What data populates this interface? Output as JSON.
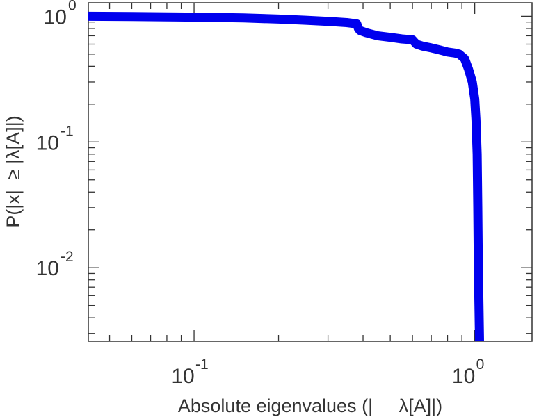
{
  "chart_data": {
    "type": "line",
    "title": "",
    "xlabel": "Absolute eigenvalues (|     λ[A]|)",
    "ylabel": "P(|x|  ≥ |λ[A]|)",
    "x_scale": "log",
    "y_scale": "log",
    "xlim": [
      0.042,
      1.6
    ],
    "ylim": [
      0.0026,
      1.28
    ],
    "grid": false,
    "legend": "none",
    "line_color": "#0000ee",
    "x_ticks": [
      {
        "value": 0.1,
        "base": "10",
        "exp": "-1"
      },
      {
        "value": 1.0,
        "base": "10",
        "exp": "0"
      }
    ],
    "y_ticks": [
      {
        "value": 1.0,
        "base": "10",
        "exp": "0"
      },
      {
        "value": 0.1,
        "base": "10",
        "exp": "-1"
      },
      {
        "value": 0.01,
        "base": "10",
        "exp": "-2"
      }
    ],
    "series": [
      {
        "x": [
          0.042,
          0.06,
          0.08,
          0.1,
          0.15,
          0.2,
          0.25,
          0.3,
          0.35,
          0.38,
          0.385,
          0.39,
          0.41,
          0.45,
          0.5,
          0.55,
          0.6,
          0.62,
          0.65,
          0.7,
          0.75,
          0.8,
          0.85,
          0.88,
          0.92,
          0.95,
          0.98,
          1.0,
          1.01,
          1.02,
          1.025,
          1.03,
          1.035,
          1.04
        ],
        "y": [
          1.0,
          0.995,
          0.99,
          0.985,
          0.97,
          0.95,
          0.93,
          0.91,
          0.89,
          0.87,
          0.8,
          0.77,
          0.74,
          0.7,
          0.68,
          0.66,
          0.65,
          0.6,
          0.58,
          0.56,
          0.54,
          0.52,
          0.51,
          0.5,
          0.46,
          0.38,
          0.3,
          0.22,
          0.15,
          0.08,
          0.03,
          0.01,
          0.005,
          0.0026
        ]
      }
    ]
  }
}
